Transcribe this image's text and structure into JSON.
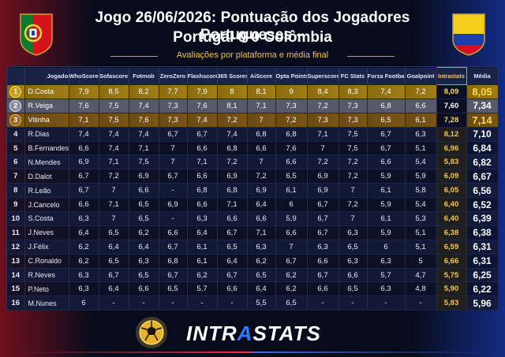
{
  "header": {
    "title_line1": "Jogo 26/06/2026: Pontuação dos Jogadores Portugueses –",
    "title_line2": "Portugal 0-0 Colômbia",
    "subtitle": "Avaliações por plataforma e média final"
  },
  "colors": {
    "background": "#070b1c",
    "gold": "#f2c84b",
    "header_row": "#1a2347",
    "brand_blue": "#2f7bff",
    "portugal_red": "#c8141e",
    "colombia_blue": "#1e46dc"
  },
  "icons": {
    "left_flag": "portugal-flag-icon",
    "right_flag": "colombia-flag-icon",
    "footer": "soccer-ball-icon"
  },
  "table": {
    "columns": [
      "",
      "Jogador",
      "WhoScored",
      "Sofascore",
      "Fotmob",
      "ZeroZero",
      "Flashscore",
      "365 Scores",
      "AiScore",
      "Opta Points",
      "Superscore",
      "FC Stats",
      "Forza Football",
      "Goalpoint",
      "Intrastats",
      "Média"
    ],
    "rows": [
      {
        "pos": "1",
        "player": "D.Costa",
        "scores": [
          "7,9",
          "8,5",
          "8,2",
          "7,7",
          "7,9",
          "8",
          "8,1",
          "9",
          "8,4",
          "8,3",
          "7,4",
          "7,2"
        ],
        "intrastats": "8,09",
        "media": "8,05"
      },
      {
        "pos": "2",
        "player": "R.Veiga",
        "scores": [
          "7,6",
          "7,5",
          "7,4",
          "7,3",
          "7,6",
          "8,1",
          "7,1",
          "7,3",
          "7,2",
          "7,3",
          "6,8",
          "6,6"
        ],
        "intrastats": "7,60",
        "media": "7,34"
      },
      {
        "pos": "3",
        "player": "Vitinha",
        "scores": [
          "7,1",
          "7,5",
          "7,6",
          "7,3",
          "7,4",
          "7,2",
          "7",
          "7,2",
          "7,3",
          "7,3",
          "6,5",
          "6,1"
        ],
        "intrastats": "7,28",
        "media": "7,14"
      },
      {
        "pos": "4",
        "player": "R.Dias",
        "scores": [
          "7,4",
          "7,4",
          "7,4",
          "6,7",
          "6,7",
          "7,4",
          "6,8",
          "6,8",
          "7,1",
          "7,5",
          "6,7",
          "6,3"
        ],
        "intrastats": "8,12",
        "media": "7,10"
      },
      {
        "pos": "5",
        "player": "B.Fernandes",
        "scores": [
          "6,6",
          "7,4",
          "7,1",
          "7",
          "6,6",
          "6,8",
          "6,6",
          "7,6",
          "7",
          "7,5",
          "6,7",
          "5,1"
        ],
        "intrastats": "6,96",
        "media": "6,84"
      },
      {
        "pos": "6",
        "player": "N.Mendes",
        "scores": [
          "6,9",
          "7,1",
          "7,5",
          "7",
          "7,1",
          "7,2",
          "7",
          "6,6",
          "7,2",
          "7,2",
          "6,6",
          "5,4"
        ],
        "intrastats": "5,83",
        "media": "6,82"
      },
      {
        "pos": "7",
        "player": "D.Dalot",
        "scores": [
          "6,7",
          "7,2",
          "6,9",
          "6,7",
          "6,6",
          "6,9",
          "7,2",
          "6,5",
          "6,9",
          "7,2",
          "5,9",
          "5,9"
        ],
        "intrastats": "6,09",
        "media": "6,67"
      },
      {
        "pos": "8",
        "player": "R.Leão",
        "scores": [
          "6,7",
          "7",
          "6,6",
          "-",
          "6,8",
          "6,8",
          "6,9",
          "6,1",
          "6,9",
          "7",
          "6,1",
          "5,8"
        ],
        "intrastats": "6,05",
        "media": "6,56"
      },
      {
        "pos": "9",
        "player": "J.Cancelo",
        "scores": [
          "6,6",
          "7,1",
          "6,5",
          "6,9",
          "6,6",
          "7,1",
          "6,4",
          "6",
          "6,7",
          "7,2",
          "5,9",
          "5,4"
        ],
        "intrastats": "6,40",
        "media": "6,52"
      },
      {
        "pos": "10",
        "player": "S.Costa",
        "scores": [
          "6,3",
          "7",
          "6,5",
          "-",
          "6,3",
          "6,6",
          "6,6",
          "5,9",
          "6,7",
          "7",
          "6,1",
          "5,3"
        ],
        "intrastats": "6,40",
        "media": "6,39"
      },
      {
        "pos": "11",
        "player": "J.Neves",
        "scores": [
          "6,4",
          "6,5",
          "6,2",
          "6,6",
          "6,4",
          "6,7",
          "7,1",
          "6,6",
          "6,7",
          "6,3",
          "5,9",
          "5,1"
        ],
        "intrastats": "6,38",
        "media": "6,38"
      },
      {
        "pos": "12",
        "player": "J.Félix",
        "scores": [
          "6,2",
          "6,4",
          "6,4",
          "6,7",
          "6,1",
          "6,5",
          "6,3",
          "7",
          "6,3",
          "6,5",
          "6",
          "5,1"
        ],
        "intrastats": "6,59",
        "media": "6,31"
      },
      {
        "pos": "13",
        "player": "C.Ronaldo",
        "scores": [
          "6,2",
          "6,5",
          "6,3",
          "6,8",
          "6,1",
          "6,4",
          "6,2",
          "6,7",
          "6,6",
          "6,3",
          "6,3",
          "5"
        ],
        "intrastats": "6,66",
        "media": "6,31"
      },
      {
        "pos": "14",
        "player": "R.Neves",
        "scores": [
          "6,3",
          "6,7",
          "6,5",
          "6,7",
          "6,2",
          "6,7",
          "6,5",
          "6,2",
          "6,7",
          "6,6",
          "5,7",
          "4,7"
        ],
        "intrastats": "5,75",
        "media": "6,25"
      },
      {
        "pos": "15",
        "player": "P.Neto",
        "scores": [
          "6,3",
          "6,4",
          "6,6",
          "6,5",
          "5,7",
          "6,6",
          "6,4",
          "6,2",
          "6,6",
          "6,5",
          "6,3",
          "4,8"
        ],
        "intrastats": "5,90",
        "media": "6,22"
      },
      {
        "pos": "16",
        "player": "M.Nunes",
        "scores": [
          "6",
          "-",
          "-",
          "-",
          "-",
          "-",
          "5,5",
          "6,5",
          "-",
          "-",
          "-",
          "-"
        ],
        "intrastats": "5,83",
        "media": "5,96"
      }
    ]
  },
  "footer": {
    "brand_prefix": "INTR",
    "brand_accent": "A",
    "brand_suffix": "STATS"
  }
}
